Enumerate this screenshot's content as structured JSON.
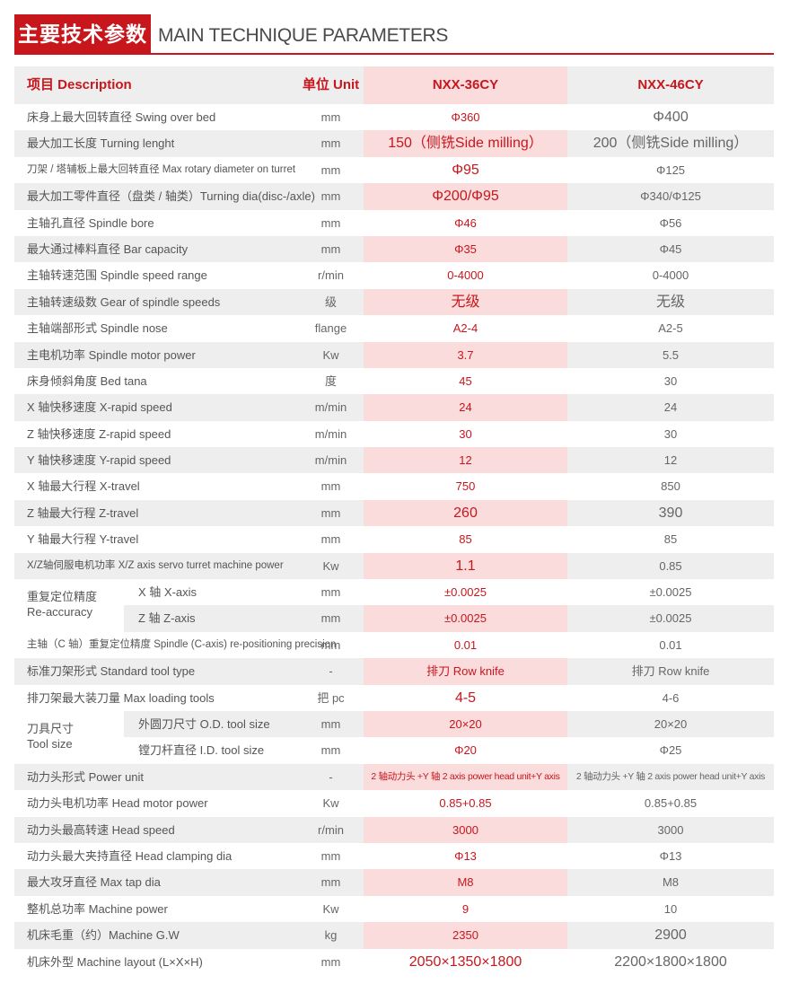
{
  "title": {
    "cn": "主要技术参数",
    "en": "MAIN TECHNIQUE PARAMETERS"
  },
  "header": {
    "desc": "项目 Description",
    "unit": "单位 Unit",
    "model_a": "NXX-36CY",
    "model_b": "NXX-46CY"
  },
  "rows": [
    {
      "desc": "床身上最大回转直径 Swing over bed",
      "unit": "mm",
      "a": "Φ360",
      "b": "Φ400"
    },
    {
      "desc": "最大加工长度 Turning lenght",
      "unit": "mm",
      "a": "150（侧铣Side milling）",
      "b": "200（侧铣Side milling）"
    },
    {
      "desc": "刀架 / 塔辅板上最大回转直径 Max rotary diameter on turret",
      "unit": "mm",
      "a": "Φ95",
      "b": "Φ125"
    },
    {
      "desc": "最大加工零件直径（盘类 / 轴类）Turning dia(disc-/axle)",
      "unit": "mm",
      "a": "Φ200/Φ95",
      "b": "Φ340/Φ125"
    },
    {
      "desc": "主轴孔直径 Spindle bore",
      "unit": "mm",
      "a": "Φ46",
      "b": "Φ56"
    },
    {
      "desc": "最大通过棒料直径 Bar capacity",
      "unit": "mm",
      "a": "Φ35",
      "b": "Φ45"
    },
    {
      "desc": "主轴转速范围 Spindle speed range",
      "unit": "r/min",
      "a": "0-4000",
      "b": "0-4000"
    },
    {
      "desc": "主轴转速级数 Gear of spindle speeds",
      "unit": "级",
      "a": "无级",
      "b": "无级"
    },
    {
      "desc": "主轴端部形式 Spindle nose",
      "unit": "flange",
      "a": "A2-4",
      "b": "A2-5"
    },
    {
      "desc": "主电机功率 Spindle motor power",
      "unit": "Kw",
      "a": "3.7",
      "b": "5.5"
    },
    {
      "desc": "床身倾斜角度 Bed tana",
      "unit": "度",
      "a": "45",
      "b": "30"
    },
    {
      "desc": "X 轴快移速度 X-rapid speed",
      "unit": "m/min",
      "a": "24",
      "b": "24"
    },
    {
      "desc": "Z 轴快移速度 Z-rapid speed",
      "unit": "m/min",
      "a": "30",
      "b": "30"
    },
    {
      "desc": "Y 轴快移速度 Y-rapid speed",
      "unit": "m/min",
      "a": "12",
      "b": "12"
    },
    {
      "desc": "X 轴最大行程 X-travel",
      "unit": "mm",
      "a": "750",
      "b": "850"
    },
    {
      "desc": "Z 轴最大行程 Z-travel",
      "unit": "mm",
      "a": "260",
      "b": "390"
    },
    {
      "desc": "Y 轴最大行程 Y-travel",
      "unit": "mm",
      "a": "85",
      "b": "85"
    },
    {
      "desc": "X/Z轴伺服电机功率 X/Z axis servo turret machine power",
      "unit": "Kw",
      "a": "1.1",
      "b": "0.85"
    },
    {
      "sub": "X 轴 X-axis",
      "unit": "mm",
      "a": "±0.0025",
      "b": "±0.0025"
    },
    {
      "sub": "Z 轴 Z-axis",
      "unit": "mm",
      "a": "±0.0025",
      "b": "±0.0025"
    },
    {
      "desc": "主轴（C 轴）重复定位精度 Spindle (C-axis) re-positioning precision",
      "unit": "mm",
      "a": "0.01",
      "b": "0.01"
    },
    {
      "desc": "标准刀架形式 Standard tool type",
      "unit": "-",
      "a": "排刀 Row knife",
      "b": "排刀 Row knife"
    },
    {
      "desc": "排刀架最大装刀量 Max loading tools",
      "unit": "把 pc",
      "a": "4-5",
      "b": "4-6"
    },
    {
      "sub": "外圆刀尺寸 O.D. tool size",
      "unit": "mm",
      "a": "20×20",
      "b": "20×20"
    },
    {
      "sub": "镗刀杆直径 I.D. tool size",
      "unit": "mm",
      "a": "Φ20",
      "b": "Φ25"
    },
    {
      "desc": "动力头形式 Power unit",
      "unit": "-",
      "a": "2 轴动力头 +Y 轴 2 axis power head unit+Y axis",
      "b": "2 轴动力头 +Y 轴 2 axis power head unit+Y axis"
    },
    {
      "desc": "动力头电机功率 Head motor power",
      "unit": "Kw",
      "a": "0.85+0.85",
      "b": "0.85+0.85"
    },
    {
      "desc": "动力头最高转速 Head speed",
      "unit": "r/min",
      "a": "3000",
      "b": "3000"
    },
    {
      "desc": "动力头最大夹持直径 Head clamping dia",
      "unit": "mm",
      "a": "Φ13",
      "b": "Φ13"
    },
    {
      "desc": "最大攻牙直径 Max tap dia",
      "unit": "mm",
      "a": "M8",
      "b": "M8"
    },
    {
      "desc": "整机总功率 Machine power",
      "unit": "Kw",
      "a": "9",
      "b": "10"
    },
    {
      "desc": "机床毛重（约）Machine G.W",
      "unit": "kg",
      "a": "2350",
      "b": "2900"
    },
    {
      "desc": "机床外型 Machine layout (L×X×H)",
      "unit": "mm",
      "a": "2050×1350×1800",
      "b": "2200×1800×1800"
    }
  ],
  "groups": {
    "reaccuracy": {
      "cn": "重复定位精度",
      "en": "Re-accuracy"
    },
    "toolsize": {
      "cn": "刀具尺寸",
      "en": "Tool size"
    }
  },
  "colors": {
    "accent": "#c8161d",
    "row_alt": "#eeeeee",
    "highlight": "#fbdcdc"
  }
}
